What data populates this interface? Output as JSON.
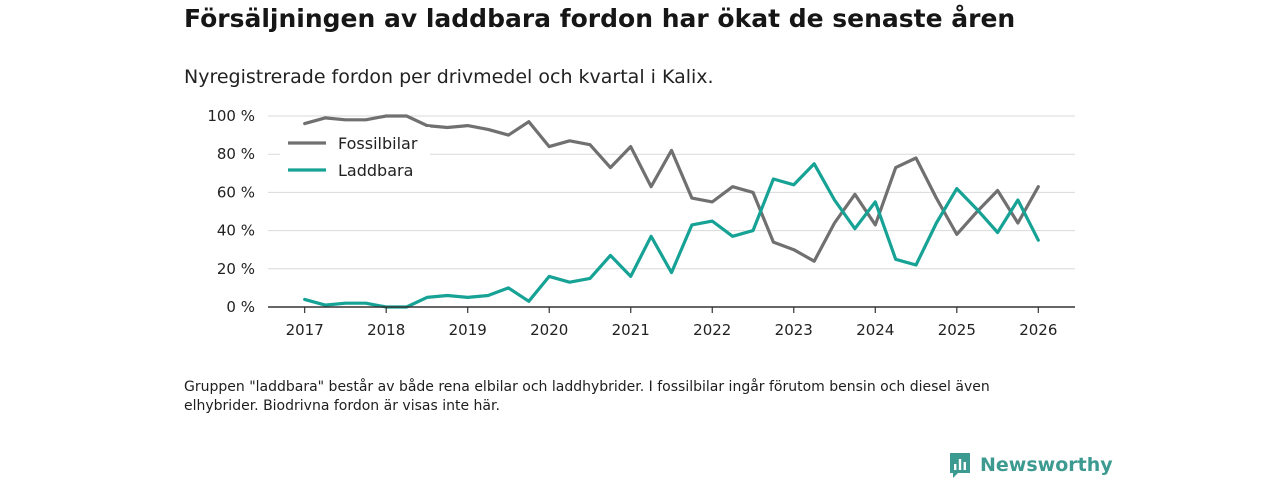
{
  "title": "Försäljningen av laddbara fordon har ökat de senaste åren",
  "subtitle": "Nyregistrerade fordon per drivmedel och kvartal i Kalix.",
  "note": "Gruppen \"laddbara\" består av både rena elbilar och laddhybrider. I fossilbilar ingår förutom bensin och diesel även elhybrider. Biodrivna fordon är visas inte här.",
  "brand": {
    "name": "Newsworthy",
    "icon": "newsworthy-logo-icon",
    "color": "#3c9a90"
  },
  "chart_data": {
    "type": "line",
    "title": "Försäljningen av laddbara fordon har ökat de senaste åren",
    "subtitle": "Nyregistrerade fordon per drivmedel och kvartal i Kalix.",
    "xlabel": "",
    "ylabel": "",
    "x_start": 2017.0,
    "x_step": 0.25,
    "xlim": [
      2016.55,
      2026.45
    ],
    "ylim": [
      0,
      100
    ],
    "x_ticks": [
      2017,
      2018,
      2019,
      2020,
      2021,
      2022,
      2023,
      2024,
      2025,
      2026
    ],
    "y_ticks": [
      0,
      20,
      40,
      60,
      80,
      100
    ],
    "y_tick_labels": [
      "0 %",
      "20 %",
      "40 %",
      "60 %",
      "80 %",
      "100 %"
    ],
    "grid": "horizontal",
    "legend_position": "top-left",
    "series": [
      {
        "name": "Fossilbilar",
        "color": "#707070",
        "values": [
          96,
          99,
          98,
          98,
          100,
          100,
          95,
          94,
          95,
          93,
          90,
          97,
          84,
          87,
          85,
          73,
          84,
          63,
          82,
          57,
          55,
          63,
          60,
          34,
          30,
          24,
          44,
          59,
          43,
          73,
          78,
          57,
          38,
          50,
          61,
          44,
          63
        ]
      },
      {
        "name": "Laddbara",
        "color": "#16a295",
        "values": [
          4,
          1,
          2,
          2,
          0,
          0,
          5,
          6,
          5,
          6,
          10,
          3,
          16,
          13,
          15,
          27,
          16,
          37,
          18,
          43,
          45,
          37,
          40,
          67,
          64,
          75,
          56,
          41,
          55,
          25,
          22,
          44,
          62,
          51,
          39,
          56,
          35
        ]
      }
    ]
  }
}
